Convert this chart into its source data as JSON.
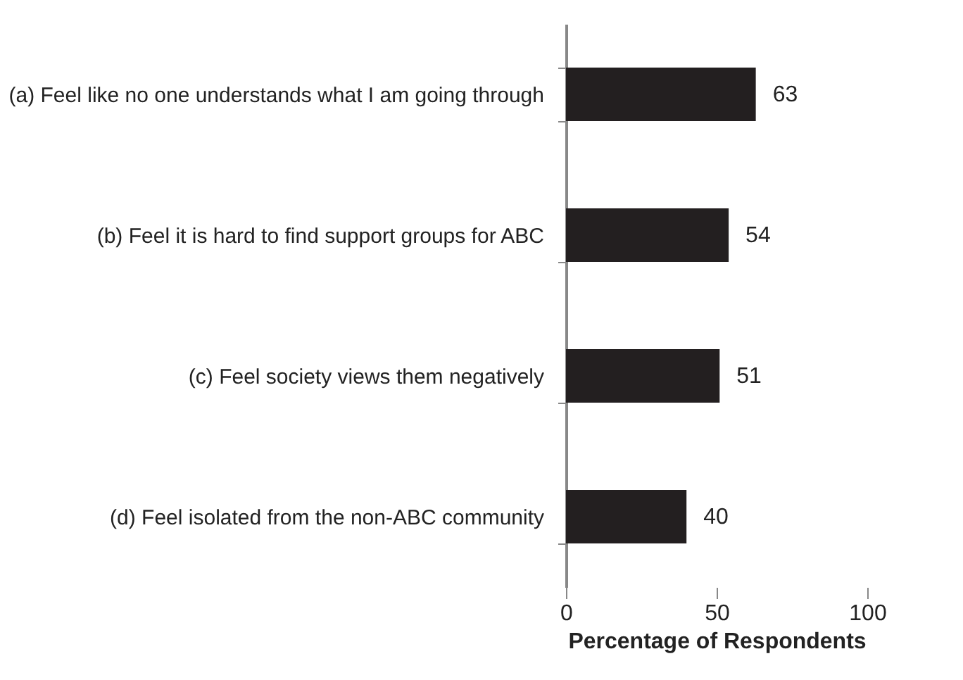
{
  "chart_data": {
    "type": "bar",
    "orientation": "horizontal",
    "xlabel": "Percentage of Respondents",
    "categories": [
      "(a) Feel like no one understands what I am going through",
      "(b) Feel it is hard to find support groups for ABC",
      "(c) Feel society views them negatively",
      "(d) Feel isolated from the non-ABC community"
    ],
    "values": [
      63,
      54,
      51,
      40
    ],
    "color": "#231f20",
    "xlim": [
      0,
      100
    ],
    "xticks": [
      0,
      50,
      100
    ],
    "data_labels": true,
    "grid": false
  }
}
